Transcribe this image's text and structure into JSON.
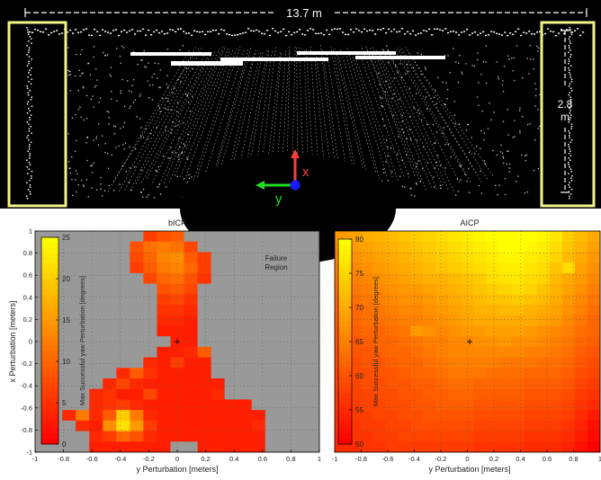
{
  "top_panel": {
    "width_label": "13.7 m",
    "height_label_value": "2.8",
    "height_label_unit": "m",
    "axis_x_label": "x",
    "axis_y_label": "y",
    "colors": {
      "background": "#000000",
      "points": "#ffffff",
      "box": "#f2f28a",
      "x_axis": "#ff3b3b",
      "y_axis": "#22dd22",
      "origin": "#1a1aff"
    }
  },
  "chart_data": [
    {
      "type": "heatmap",
      "title": "bICP",
      "xlabel": "y Perturbation [meters]",
      "ylabel": "x Perturbation [meters]",
      "xlim": [
        -1,
        1
      ],
      "ylim": [
        -1,
        1
      ],
      "x_ticks": [
        "-1",
        "-0.8",
        "-0.6",
        "-0.4",
        "-0.2",
        "0",
        "0.2",
        "0.4",
        "0.6",
        "0.8",
        "1"
      ],
      "y_ticks": [
        "1",
        "0.8",
        "0.6",
        "0.4",
        "0.2",
        "0",
        "-0.2",
        "-0.4",
        "-0.6",
        "-0.8",
        "-1"
      ],
      "grid": true,
      "colorbar": {
        "label": "Max Successful yaw Perturbation [degrees]",
        "min": 0,
        "max": 25,
        "ticks": [
          "25",
          "20",
          "15",
          "10",
          "5",
          "0"
        ],
        "colormap": "autumn (red to yellow)"
      },
      "annotation": [
        "Failure",
        "Region"
      ],
      "failure_color": "#999999",
      "origin_marker": "+",
      "grid_size": 21,
      "values": [
        [
          null,
          null,
          null,
          null,
          null,
          null,
          null,
          null,
          6,
          8,
          9,
          null,
          null,
          null,
          null,
          null,
          null,
          null,
          null,
          null,
          null
        ],
        [
          null,
          null,
          null,
          null,
          null,
          null,
          null,
          8,
          11,
          12,
          11,
          7,
          null,
          null,
          null,
          null,
          null,
          null,
          null,
          null,
          null
        ],
        [
          null,
          null,
          null,
          null,
          null,
          null,
          null,
          7,
          10,
          13,
          14,
          9,
          6,
          null,
          null,
          null,
          null,
          null,
          null,
          null,
          null
        ],
        [
          null,
          null,
          null,
          null,
          null,
          null,
          null,
          6,
          9,
          12,
          13,
          10,
          6,
          null,
          null,
          null,
          null,
          null,
          null,
          null,
          null
        ],
        [
          null,
          null,
          null,
          null,
          null,
          null,
          null,
          null,
          7,
          10,
          11,
          8,
          5,
          null,
          null,
          null,
          null,
          null,
          null,
          null,
          null
        ],
        [
          null,
          null,
          null,
          null,
          null,
          null,
          null,
          null,
          null,
          8,
          9,
          7,
          null,
          null,
          null,
          null,
          null,
          null,
          null,
          null,
          null
        ],
        [
          null,
          null,
          null,
          null,
          null,
          null,
          null,
          null,
          null,
          6,
          7,
          5,
          null,
          null,
          null,
          null,
          null,
          null,
          null,
          null,
          null
        ],
        [
          null,
          null,
          null,
          null,
          null,
          null,
          null,
          null,
          null,
          5,
          5,
          4,
          null,
          null,
          null,
          null,
          null,
          null,
          null,
          null,
          null
        ],
        [
          null,
          null,
          null,
          null,
          null,
          null,
          null,
          null,
          null,
          4,
          4,
          3,
          null,
          null,
          null,
          null,
          null,
          null,
          null,
          null,
          null
        ],
        [
          null,
          null,
          null,
          null,
          null,
          null,
          null,
          null,
          null,
          3,
          3,
          3,
          null,
          null,
          null,
          null,
          null,
          null,
          null,
          null,
          null
        ],
        [
          null,
          null,
          null,
          null,
          null,
          null,
          null,
          null,
          null,
          null,
          3,
          3,
          null,
          null,
          null,
          null,
          null,
          null,
          null,
          null,
          null
        ],
        [
          null,
          null,
          null,
          null,
          null,
          null,
          null,
          null,
          null,
          3,
          3,
          4,
          9,
          null,
          null,
          null,
          null,
          null,
          null,
          null,
          null
        ],
        [
          null,
          null,
          null,
          null,
          null,
          null,
          null,
          null,
          4,
          3,
          6,
          3,
          3,
          null,
          null,
          null,
          null,
          null,
          null,
          null,
          null
        ],
        [
          null,
          null,
          null,
          null,
          null,
          null,
          4,
          9,
          5,
          3,
          3,
          3,
          3,
          null,
          null,
          null,
          null,
          null,
          null,
          null,
          null
        ],
        [
          null,
          null,
          null,
          null,
          null,
          4,
          7,
          4,
          3,
          3,
          3,
          3,
          3,
          3,
          null,
          null,
          null,
          null,
          null,
          null,
          null
        ],
        [
          null,
          null,
          null,
          null,
          4,
          5,
          3,
          3,
          7,
          3,
          3,
          3,
          3,
          4,
          null,
          null,
          null,
          null,
          null,
          null,
          null
        ],
        [
          null,
          null,
          null,
          null,
          4,
          5,
          6,
          4,
          3,
          3,
          3,
          3,
          3,
          3,
          3,
          3,
          null,
          null,
          null,
          null,
          null
        ],
        [
          null,
          null,
          4,
          12,
          4,
          9,
          20,
          12,
          4,
          3,
          3,
          3,
          3,
          3,
          3,
          3,
          3,
          null,
          null,
          null,
          null
        ],
        [
          null,
          null,
          null,
          4,
          3,
          14,
          22,
          15,
          6,
          3,
          3,
          3,
          3,
          3,
          3,
          3,
          4,
          null,
          null,
          null,
          null
        ],
        [
          null,
          null,
          null,
          null,
          4,
          6,
          10,
          8,
          4,
          3,
          3,
          3,
          3,
          3,
          3,
          3,
          3,
          null,
          null,
          null,
          null
        ],
        [
          null,
          null,
          null,
          null,
          3,
          3,
          3,
          3,
          3,
          3,
          null,
          null,
          3,
          3,
          3,
          3,
          3,
          null,
          null,
          null,
          null
        ]
      ]
    },
    {
      "type": "heatmap",
      "title": "AICP",
      "xlabel": "y Perturbation [meters]",
      "ylabel": "",
      "xlim": [
        -1,
        1
      ],
      "ylim": [
        -1,
        1
      ],
      "x_ticks": [
        "-1",
        "-0.8",
        "-0.6",
        "-0.4",
        "-0.2",
        "0",
        "0.2",
        "0.4",
        "0.6",
        "0.8",
        "1"
      ],
      "y_ticks": [
        "1",
        "0.8",
        "0.6",
        "0.4",
        "0.2",
        "0",
        "-0.2",
        "-0.4",
        "-0.6",
        "-0.8",
        "-1"
      ],
      "grid": true,
      "colorbar": {
        "label": "Max Successful yaw Perturbation [degrees]",
        "min": 50,
        "max": 80,
        "ticks": [
          "80",
          "75",
          "70",
          "65",
          "60",
          "55",
          "50"
        ],
        "colormap": "autumn (red to yellow)"
      },
      "origin_marker": "+",
      "grid_size": 21,
      "values": [
        [
          68,
          69,
          70,
          71,
          72,
          73,
          74,
          75,
          76,
          77,
          78,
          79,
          80,
          80,
          80,
          80,
          79,
          77,
          74,
          72,
          70
        ],
        [
          67,
          68,
          69,
          70,
          71,
          72,
          73,
          74,
          75,
          76,
          77,
          78,
          79,
          80,
          80,
          79,
          78,
          76,
          73,
          71,
          69
        ],
        [
          66,
          67,
          68,
          69,
          70,
          71,
          72,
          73,
          74,
          75,
          76,
          77,
          78,
          79,
          79,
          78,
          77,
          75,
          72,
          70,
          68
        ],
        [
          65,
          66,
          67,
          68,
          69,
          70,
          71,
          72,
          73,
          74,
          75,
          76,
          77,
          78,
          78,
          77,
          76,
          73,
          76,
          69,
          67
        ],
        [
          64,
          65,
          66,
          67,
          68,
          69,
          70,
          71,
          71,
          72,
          73,
          74,
          76,
          77,
          77,
          76,
          75,
          72,
          70,
          68,
          66
        ],
        [
          63,
          64,
          65,
          66,
          67,
          68,
          68,
          69,
          70,
          71,
          72,
          73,
          74,
          75,
          76,
          75,
          73,
          71,
          69,
          67,
          65
        ],
        [
          62,
          63,
          64,
          65,
          66,
          67,
          67,
          68,
          69,
          70,
          71,
          72,
          73,
          73,
          74,
          73,
          72,
          70,
          68,
          66,
          64
        ],
        [
          61,
          62,
          63,
          64,
          65,
          66,
          66,
          67,
          68,
          69,
          70,
          71,
          71,
          72,
          72,
          71,
          70,
          69,
          67,
          65,
          63
        ],
        [
          61,
          62,
          63,
          63,
          64,
          65,
          65,
          66,
          67,
          68,
          69,
          70,
          70,
          70,
          70,
          70,
          69,
          68,
          66,
          64,
          62
        ],
        [
          60,
          61,
          62,
          62,
          63,
          64,
          68,
          67,
          66,
          67,
          68,
          68,
          69,
          69,
          69,
          68,
          67,
          66,
          65,
          63,
          62
        ],
        [
          60,
          60,
          61,
          62,
          62,
          63,
          64,
          65,
          65,
          66,
          66,
          67,
          67,
          68,
          67,
          67,
          66,
          65,
          64,
          62,
          61
        ],
        [
          59,
          60,
          60,
          61,
          62,
          62,
          63,
          64,
          65,
          66,
          66,
          66,
          66,
          66,
          66,
          65,
          65,
          64,
          63,
          61,
          60
        ],
        [
          59,
          59,
          60,
          60,
          61,
          62,
          62,
          63,
          64,
          65,
          65,
          65,
          65,
          64,
          64,
          64,
          63,
          63,
          62,
          60,
          59
        ],
        [
          58,
          59,
          59,
          60,
          60,
          61,
          62,
          62,
          63,
          64,
          64,
          64,
          63,
          63,
          63,
          62,
          62,
          62,
          61,
          59,
          58
        ],
        [
          58,
          58,
          59,
          59,
          60,
          60,
          61,
          61,
          62,
          63,
          63,
          62,
          62,
          62,
          62,
          61,
          61,
          61,
          60,
          58,
          57
        ],
        [
          57,
          58,
          58,
          59,
          59,
          60,
          60,
          61,
          61,
          62,
          62,
          61,
          61,
          61,
          61,
          60,
          60,
          60,
          59,
          57,
          56
        ],
        [
          57,
          57,
          58,
          58,
          59,
          59,
          60,
          60,
          61,
          61,
          61,
          60,
          60,
          60,
          60,
          59,
          59,
          59,
          58,
          56,
          55
        ],
        [
          56,
          57,
          57,
          58,
          58,
          59,
          59,
          60,
          60,
          60,
          60,
          59,
          59,
          59,
          59,
          58,
          58,
          58,
          57,
          55,
          53
        ],
        [
          56,
          56,
          57,
          57,
          58,
          58,
          59,
          59,
          59,
          59,
          59,
          58,
          58,
          58,
          58,
          57,
          57,
          57,
          56,
          54,
          52
        ],
        [
          55,
          56,
          56,
          57,
          57,
          58,
          58,
          58,
          58,
          58,
          58,
          57,
          57,
          57,
          57,
          56,
          56,
          56,
          55,
          53,
          51
        ],
        [
          55,
          55,
          56,
          56,
          57,
          57,
          57,
          57,
          57,
          57,
          57,
          56,
          56,
          56,
          56,
          55,
          55,
          55,
          54,
          52,
          50
        ]
      ]
    }
  ]
}
